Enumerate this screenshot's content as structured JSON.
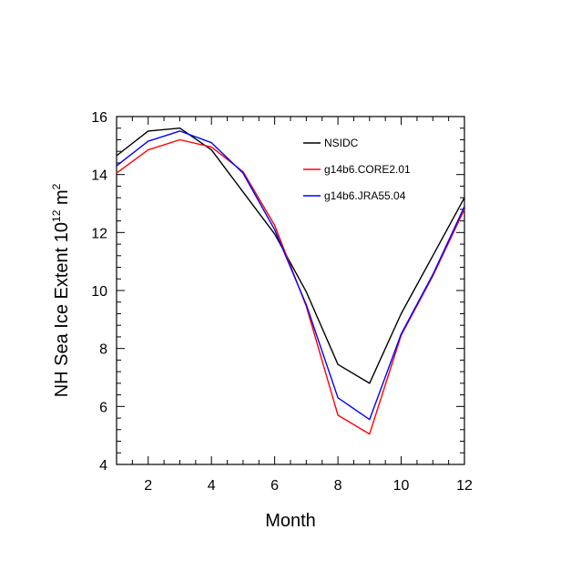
{
  "chart_data": {
    "type": "line",
    "title": "",
    "xlabel": "Month",
    "ylabel": {
      "main": "NH Sea Ice Extent 10",
      "exp1": "12",
      "mid": " m",
      "exp2": "2"
    },
    "xlim": [
      1,
      12
    ],
    "ylim": [
      4,
      16
    ],
    "xticks": [
      2,
      4,
      6,
      8,
      10,
      12
    ],
    "yticks": [
      4,
      6,
      8,
      10,
      12,
      14,
      16
    ],
    "x": [
      1,
      2,
      3,
      4,
      5,
      6,
      7,
      8,
      9,
      10,
      11,
      12
    ],
    "grid": false,
    "legend_position": "top-right",
    "series": [
      {
        "name": "NSIDC",
        "color": "#000000",
        "values": [
          14.65,
          15.5,
          15.6,
          14.85,
          13.4,
          11.95,
          9.95,
          7.45,
          6.8,
          9.2,
          11.2,
          13.2
        ]
      },
      {
        "name": "g14b6.CORE2.01",
        "color": "#ff0000",
        "values": [
          14.05,
          14.85,
          15.2,
          14.95,
          14.1,
          12.25,
          9.45,
          5.7,
          5.05,
          8.45,
          10.5,
          12.8
        ]
      },
      {
        "name": "g14b6.JRA55.04",
        "color": "#0000ff",
        "values": [
          14.3,
          15.15,
          15.5,
          15.1,
          14.05,
          12.1,
          9.5,
          6.3,
          5.55,
          8.5,
          10.55,
          12.9
        ]
      }
    ]
  }
}
